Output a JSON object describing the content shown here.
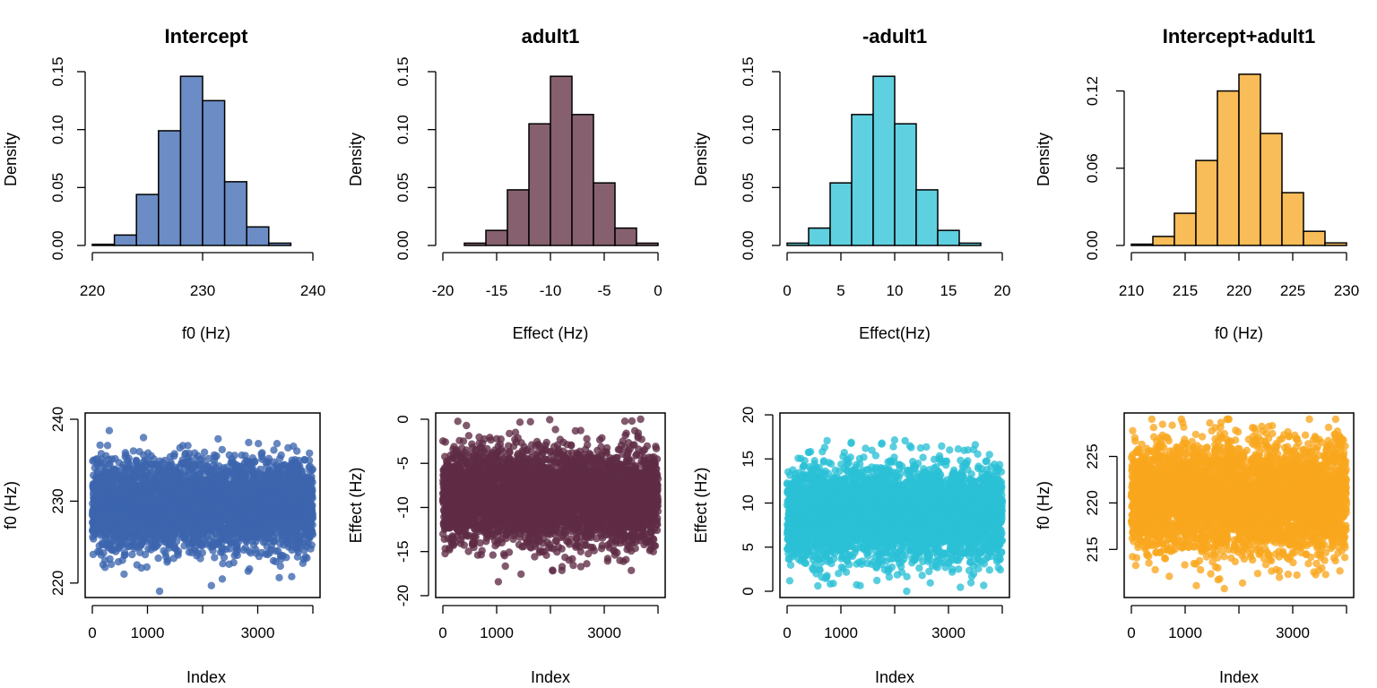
{
  "chart_data": [
    {
      "type": "histogram",
      "title": "Intercept",
      "xlabel": "f0 (Hz)",
      "ylabel": "Density",
      "color": "#6b8cc4",
      "bins": [
        [
          220,
          222,
          0.001
        ],
        [
          222,
          224,
          0.009
        ],
        [
          224,
          226,
          0.044
        ],
        [
          226,
          228,
          0.099
        ],
        [
          228,
          230,
          0.146
        ],
        [
          230,
          232,
          0.125
        ],
        [
          232,
          234,
          0.055
        ],
        [
          234,
          236,
          0.016
        ],
        [
          236,
          238,
          0.002
        ]
      ],
      "xlim": [
        220,
        240
      ],
      "ylim": [
        0,
        0.15
      ],
      "xticks": [
        220,
        230,
        240
      ],
      "yticks": [
        0.0,
        0.05,
        0.1,
        0.15
      ],
      "xtick_labels": [
        "220",
        "230",
        "240"
      ],
      "ytick_labels": [
        "0.00",
        "0.05",
        "0.10",
        "0.15"
      ]
    },
    {
      "type": "histogram",
      "title": "adult1",
      "xlabel": "Effect (Hz)",
      "ylabel": "Density",
      "color": "#86606e",
      "bins": [
        [
          -18,
          -16,
          0.002
        ],
        [
          -16,
          -14,
          0.013
        ],
        [
          -14,
          -12,
          0.048
        ],
        [
          -12,
          -10,
          0.105
        ],
        [
          -10,
          -8,
          0.146
        ],
        [
          -8,
          -6,
          0.113
        ],
        [
          -6,
          -4,
          0.054
        ],
        [
          -4,
          -2,
          0.015
        ],
        [
          -2,
          0,
          0.002
        ]
      ],
      "xlim": [
        -20,
        0
      ],
      "ylim": [
        0,
        0.15
      ],
      "xticks": [
        -20,
        -15,
        -10,
        -5,
        0
      ],
      "yticks": [
        0.0,
        0.05,
        0.1,
        0.15
      ],
      "xtick_labels": [
        "-20",
        "-15",
        "-10",
        "-5",
        "0"
      ],
      "ytick_labels": [
        "0.00",
        "0.05",
        "0.10",
        "0.15"
      ]
    },
    {
      "type": "histogram",
      "title": "-adult1",
      "xlabel": "Effect(Hz)",
      "ylabel": "Density",
      "color": "#5fd0e0",
      "bins": [
        [
          0,
          2,
          0.002
        ],
        [
          2,
          4,
          0.015
        ],
        [
          4,
          6,
          0.054
        ],
        [
          6,
          8,
          0.113
        ],
        [
          8,
          10,
          0.146
        ],
        [
          10,
          12,
          0.105
        ],
        [
          12,
          14,
          0.048
        ],
        [
          14,
          16,
          0.013
        ],
        [
          16,
          18,
          0.002
        ]
      ],
      "xlim": [
        0,
        20
      ],
      "ylim": [
        0,
        0.15
      ],
      "xticks": [
        0,
        5,
        10,
        15,
        20
      ],
      "yticks": [
        0.0,
        0.05,
        0.1,
        0.15
      ],
      "xtick_labels": [
        "0",
        "5",
        "10",
        "15",
        "20"
      ],
      "ytick_labels": [
        "0.00",
        "0.05",
        "0.10",
        "0.15"
      ]
    },
    {
      "type": "histogram",
      "title": "Intercept+adult1",
      "xlabel": "f0 (Hz)",
      "ylabel": "Density",
      "color": "#f8bc58",
      "bins": [
        [
          210,
          212,
          0.001
        ],
        [
          212,
          214,
          0.007
        ],
        [
          214,
          216,
          0.025
        ],
        [
          216,
          218,
          0.066
        ],
        [
          218,
          220,
          0.12
        ],
        [
          220,
          222,
          0.133
        ],
        [
          222,
          224,
          0.087
        ],
        [
          224,
          226,
          0.041
        ],
        [
          226,
          228,
          0.011
        ],
        [
          228,
          230,
          0.002
        ]
      ],
      "xlim": [
        210,
        230
      ],
      "ylim": [
        0,
        0.135
      ],
      "xticks": [
        210,
        215,
        220,
        225,
        230
      ],
      "yticks": [
        0.0,
        0.06,
        0.12
      ],
      "xtick_labels": [
        "210",
        "215",
        "220",
        "225",
        "230"
      ],
      "ytick_labels": [
        "0.00",
        "0.06",
        "0.12"
      ]
    },
    {
      "type": "scatter",
      "xlabel": "Index",
      "ylabel": "f0 (Hz)",
      "color": "#3c65ae",
      "n_points": 4000,
      "mean": 229.5,
      "sd": 2.7,
      "xlim": [
        0,
        4000
      ],
      "ylim": [
        219,
        240
      ],
      "xticks": [
        0,
        1000,
        2000,
        3000,
        4000
      ],
      "yticks": [
        220,
        230,
        240
      ],
      "xtick_labels": [
        "0",
        "1000",
        "",
        "3000",
        ""
      ],
      "ytick_labels": [
        "220",
        "230",
        "240"
      ]
    },
    {
      "type": "scatter",
      "xlabel": "Index",
      "ylabel": "Effect (Hz)",
      "color": "#5f2b45",
      "n_points": 4000,
      "mean": -8.8,
      "sd": 2.7,
      "xlim": [
        0,
        4000
      ],
      "ylim": [
        -19.5,
        0
      ],
      "xticks": [
        0,
        1000,
        2000,
        3000,
        4000
      ],
      "yticks": [
        -20,
        -15,
        -10,
        -5,
        0
      ],
      "xtick_labels": [
        "0",
        "1000",
        "",
        "3000",
        ""
      ],
      "ytick_labels": [
        "-20",
        "-15",
        "-10",
        "-5",
        "0"
      ]
    },
    {
      "type": "scatter",
      "xlabel": "Index",
      "ylabel": "Effect (Hz)",
      "color": "#2ac0d6",
      "n_points": 4000,
      "mean": 8.8,
      "sd": 2.7,
      "xlim": [
        0,
        4000
      ],
      "ylim": [
        0,
        19.5
      ],
      "xticks": [
        0,
        1000,
        2000,
        3000,
        4000
      ],
      "yticks": [
        0,
        5,
        10,
        15,
        20
      ],
      "xtick_labels": [
        "0",
        "1000",
        "",
        "3000",
        ""
      ],
      "ytick_labels": [
        "0",
        "5",
        "10",
        "15",
        "20"
      ]
    },
    {
      "type": "scatter",
      "xlabel": "Index",
      "ylabel": "f0 (Hz)",
      "color": "#f8a61e",
      "n_points": 4000,
      "mean": 220.6,
      "sd": 2.9,
      "xlim": [
        0,
        4000
      ],
      "ylim": [
        210.5,
        229
      ],
      "xticks": [
        0,
        1000,
        2000,
        3000,
        4000
      ],
      "yticks": [
        215,
        220,
        225
      ],
      "xtick_labels": [
        "0",
        "1000",
        "",
        "3000",
        ""
      ],
      "ytick_labels": [
        "215",
        "220",
        "225"
      ]
    }
  ]
}
